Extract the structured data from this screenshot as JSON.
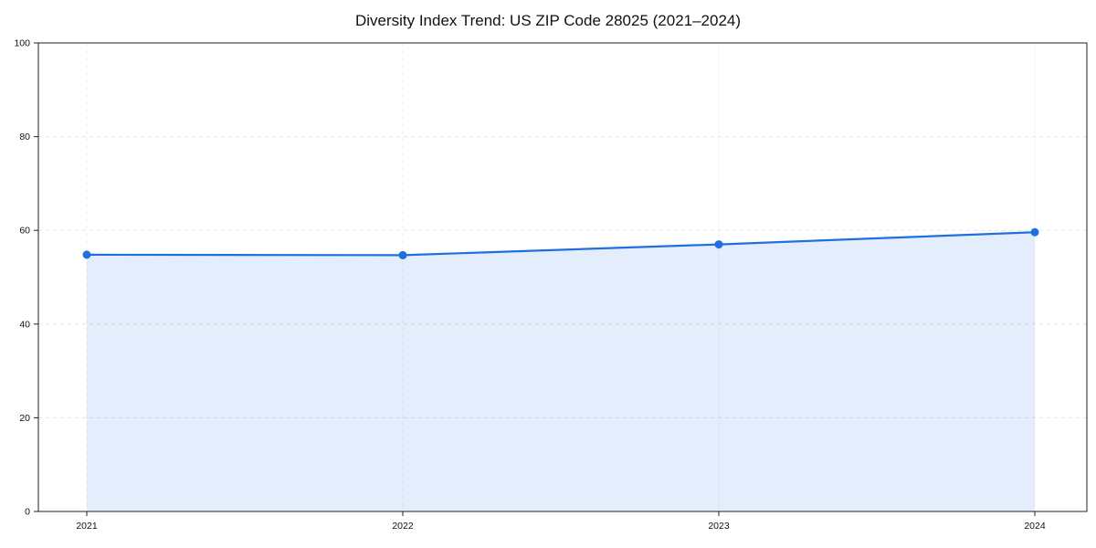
{
  "chart_data": {
    "type": "line",
    "title": "Diversity Index Trend: US ZIP Code 28025 (2021–2024)",
    "x": [
      2021,
      2022,
      2023,
      2024
    ],
    "series": [
      {
        "name": "Diversity Index",
        "values": [
          54.8,
          54.7,
          57.0,
          59.6
        ]
      }
    ],
    "xlabel": "",
    "ylabel": "",
    "ylim": [
      0,
      100
    ],
    "yticks": [
      0,
      20,
      40,
      60,
      80,
      100
    ],
    "grid": "dashed",
    "legend_position": "none",
    "line_color": "#1f6fe0",
    "fill_color": "rgba(31, 111, 224, 0.12)",
    "grid_color": "#e4e4e4",
    "axis_color": "#222222",
    "marker": "circle"
  }
}
